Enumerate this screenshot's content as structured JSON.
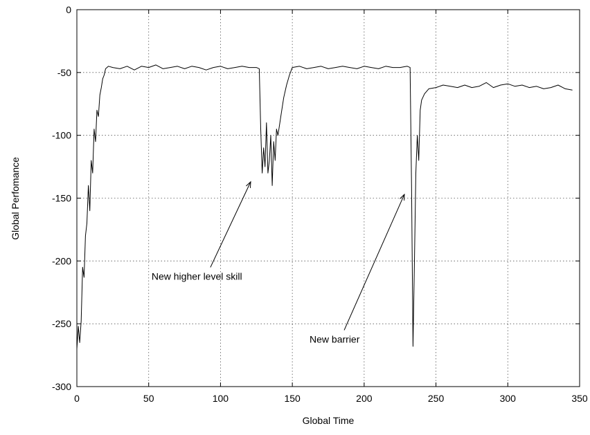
{
  "chart_data": {
    "type": "line",
    "title": "",
    "xlabel": "Global Time",
    "ylabel": "Global Perfomance",
    "xlim": [
      0,
      350
    ],
    "ylim": [
      -300,
      0
    ],
    "xticks": [
      0,
      50,
      100,
      150,
      200,
      250,
      300,
      350
    ],
    "yticks": [
      0,
      -50,
      -100,
      -150,
      -200,
      -250,
      -300
    ],
    "grid": true,
    "legend": "none",
    "series": [
      {
        "color": "#000000",
        "x": [
          0,
          1,
          2,
          3,
          4,
          5,
          6,
          7,
          8,
          9,
          10,
          11,
          12,
          13,
          14,
          15,
          16,
          17,
          18,
          19,
          20,
          22,
          25,
          30,
          35,
          40,
          45,
          50,
          55,
          60,
          65,
          70,
          75,
          80,
          85,
          90,
          95,
          100,
          105,
          110,
          115,
          120,
          125,
          127,
          128,
          129,
          130,
          131,
          132,
          133,
          134,
          135,
          136,
          137,
          138,
          139,
          140,
          142,
          144,
          146,
          148,
          150,
          155,
          160,
          165,
          170,
          175,
          180,
          185,
          190,
          195,
          200,
          205,
          210,
          215,
          220,
          225,
          230,
          232,
          233,
          234,
          235,
          236,
          237,
          238,
          239,
          240,
          242,
          245,
          250,
          255,
          260,
          265,
          270,
          275,
          280,
          285,
          290,
          295,
          300,
          305,
          310,
          315,
          320,
          325,
          330,
          335,
          340,
          345
        ],
        "y": [
          -270,
          -252,
          -265,
          -248,
          -205,
          -213,
          -180,
          -170,
          -140,
          -160,
          -120,
          -130,
          -95,
          -105,
          -80,
          -85,
          -68,
          -62,
          -55,
          -52,
          -47,
          -45,
          -46,
          -47,
          -45,
          -48,
          -45,
          -46,
          -44,
          -47,
          -46,
          -45,
          -47,
          -45,
          -46,
          -48,
          -46,
          -45,
          -47,
          -46,
          -45,
          -46,
          -46,
          -47,
          -95,
          -130,
          -110,
          -125,
          -90,
          -130,
          -120,
          -100,
          -140,
          -105,
          -120,
          -95,
          -100,
          -85,
          -70,
          -60,
          -52,
          -46,
          -45,
          -47,
          -46,
          -45,
          -47,
          -46,
          -45,
          -46,
          -47,
          -45,
          -46,
          -47,
          -45,
          -46,
          -46,
          -45,
          -46,
          -140,
          -268,
          -200,
          -130,
          -100,
          -120,
          -80,
          -72,
          -67,
          -63,
          -62,
          -60,
          -61,
          -62,
          -60,
          -62,
          -61,
          -58,
          -62,
          -60,
          -59,
          -61,
          -60,
          -62,
          -61,
          -63,
          -62,
          -60,
          -63,
          -64
        ]
      }
    ],
    "annotations": [
      {
        "text": "New higher level skill",
        "text_x": 52,
        "text_y": -215,
        "arrow_to_x": 121,
        "arrow_to_y": -137
      },
      {
        "text": "New barrier",
        "text_x": 162,
        "text_y": -265,
        "arrow_to_x": 228,
        "arrow_to_y": -147
      }
    ]
  }
}
